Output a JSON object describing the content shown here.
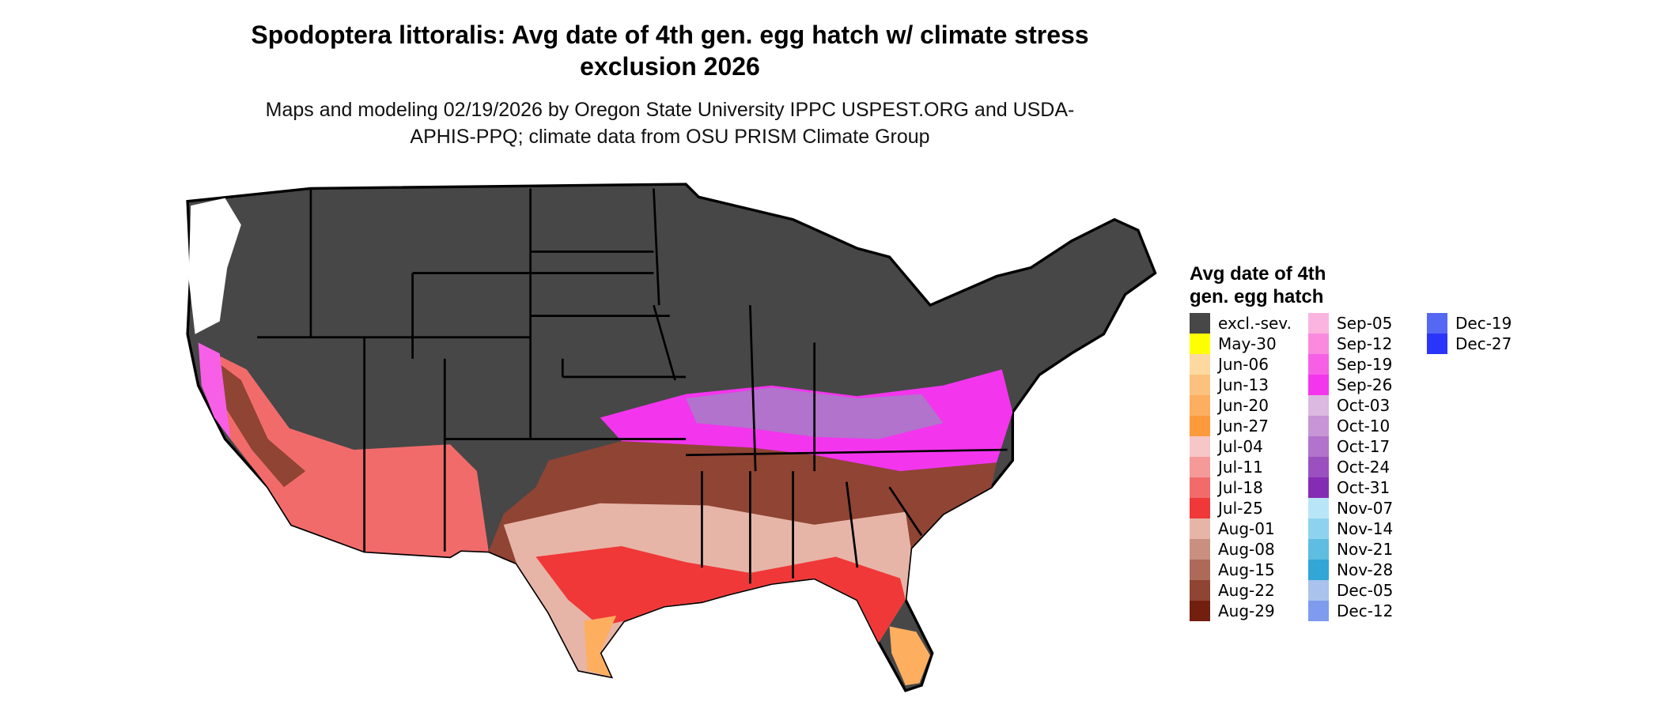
{
  "title": "Spodoptera littoralis: Avg date of 4th gen. egg hatch w/ climate stress exclusion 2026",
  "subtitle": "Maps and modeling 02/19/2026 by Oregon State University IPPC USPEST.ORG and USDA-APHIS-PPQ; climate data from OSU PRISM Climate Group",
  "legend": {
    "title": "Avg date of 4th gen. egg hatch",
    "items": [
      {
        "label": "excl.-sev.",
        "color": "#474747"
      },
      {
        "label": "May-30",
        "color": "#ffff00"
      },
      {
        "label": "Jun-06",
        "color": "#fdd9a0"
      },
      {
        "label": "Jun-13",
        "color": "#fdc17e"
      },
      {
        "label": "Jun-20",
        "color": "#fdae5f"
      },
      {
        "label": "Jun-27",
        "color": "#fd9a3c"
      },
      {
        "label": "Jul-04",
        "color": "#f7c6c6"
      },
      {
        "label": "Jul-11",
        "color": "#f59999"
      },
      {
        "label": "Jul-18",
        "color": "#f26b6b"
      },
      {
        "label": "Jul-25",
        "color": "#f03838"
      },
      {
        "label": "Aug-01",
        "color": "#e6b5a8"
      },
      {
        "label": "Aug-08",
        "color": "#c98f80"
      },
      {
        "label": "Aug-15",
        "color": "#ad6a58"
      },
      {
        "label": "Aug-22",
        "color": "#904433"
      },
      {
        "label": "Aug-29",
        "color": "#731f0f"
      },
      {
        "label": "Sep-05",
        "color": "#fbb4e0"
      },
      {
        "label": "Sep-12",
        "color": "#f98ade"
      },
      {
        "label": "Sep-19",
        "color": "#f65fe6"
      },
      {
        "label": "Sep-26",
        "color": "#f335ee"
      },
      {
        "label": "Oct-03",
        "color": "#dcb9e0"
      },
      {
        "label": "Oct-10",
        "color": "#c796d6"
      },
      {
        "label": "Oct-17",
        "color": "#b173cb"
      },
      {
        "label": "Oct-24",
        "color": "#9b50c0"
      },
      {
        "label": "Oct-31",
        "color": "#852cb4"
      },
      {
        "label": "Nov-07",
        "color": "#b9e6f7"
      },
      {
        "label": "Nov-14",
        "color": "#8dd3ee"
      },
      {
        "label": "Nov-21",
        "color": "#5fbde2"
      },
      {
        "label": "Nov-28",
        "color": "#32a6d6"
      },
      {
        "label": "Dec-05",
        "color": "#a9c3ec"
      },
      {
        "label": "Dec-12",
        "color": "#7f9bee"
      },
      {
        "label": "Dec-19",
        "color": "#5468f4"
      },
      {
        "label": "Dec-27",
        "color": "#2a35fa"
      }
    ]
  }
}
